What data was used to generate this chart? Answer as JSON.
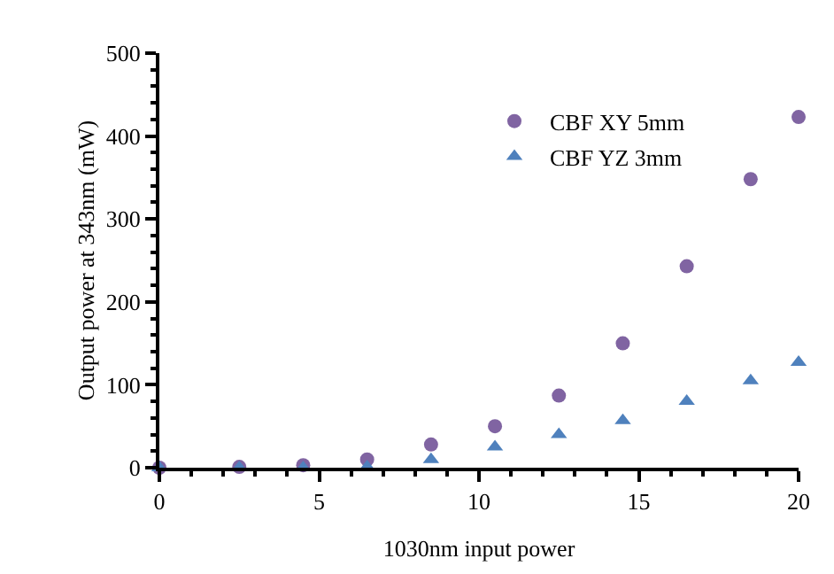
{
  "chart_data": {
    "type": "scatter",
    "xlabel": "1030nm input power",
    "ylabel": "Output power at 343nm (mW)",
    "x": [
      0,
      2.5,
      4.5,
      6.5,
      8.5,
      10.5,
      12.5,
      14.5,
      16.5,
      18.5,
      20
    ],
    "series": [
      {
        "name": "CBF XY 5mm",
        "color": "#8064a2",
        "marker": "circle",
        "values": [
          0,
          1,
          3,
          10,
          28,
          50,
          87,
          150,
          243,
          348,
          423
        ]
      },
      {
        "name": "CBF YZ 3mm",
        "color": "#4f81bd",
        "marker": "triangle",
        "values": [
          0,
          0,
          0,
          1,
          10,
          25,
          40,
          57,
          80,
          105,
          127
        ]
      }
    ],
    "xlim": [
      0,
      20
    ],
    "xticks": [
      0,
      5,
      10,
      15,
      20
    ],
    "ylim": [
      0,
      500
    ],
    "yticks": [
      0,
      100,
      200,
      300,
      400,
      500
    ],
    "grid": false,
    "legend": "top right"
  }
}
